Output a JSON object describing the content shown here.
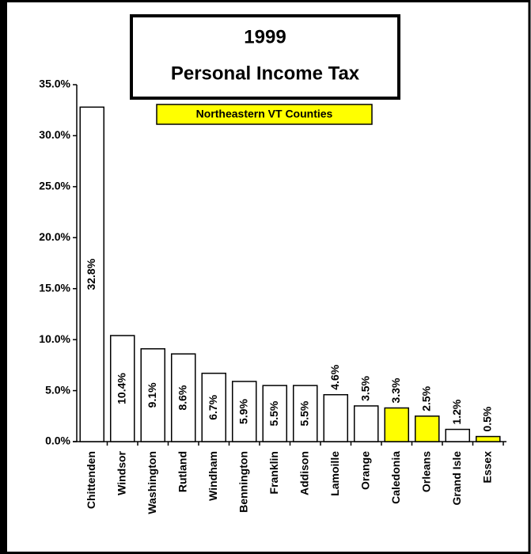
{
  "chart_data": {
    "type": "bar",
    "title": [
      "1999",
      "Personal Income Tax"
    ],
    "subtitle": "Northeastern VT Counties",
    "categories": [
      "Chittenden",
      "Windsor",
      "Washington",
      "Rutland",
      "Windham",
      "Bennington",
      "Franklin",
      "Addison",
      "Lamoille",
      "Orange",
      "Caledonia",
      "Orleans",
      "Grand Isle",
      "Essex"
    ],
    "values": [
      32.8,
      10.4,
      9.1,
      8.6,
      6.7,
      5.9,
      5.5,
      5.5,
      4.6,
      3.5,
      3.3,
      2.5,
      1.2,
      0.5
    ],
    "value_labels": [
      "32.8%",
      "10.4%",
      "9.1%",
      "8.6%",
      "6.7%",
      "5.9%",
      "5.5%",
      "5.5%",
      "4.6%",
      "3.5%",
      "3.3%",
      "2.5%",
      "1.2%",
      "0.5%"
    ],
    "colors": [
      "#ffffff",
      "#ffffff",
      "#ffffff",
      "#ffffff",
      "#ffffff",
      "#ffffff",
      "#ffffff",
      "#ffffff",
      "#ffffff",
      "#ffffff",
      "#ffff00",
      "#ffff00",
      "#ffffff",
      "#ffff00"
    ],
    "ylim": [
      0,
      35
    ],
    "yticks": [
      {
        "value": 0,
        "label": "0.0%"
      },
      {
        "value": 5,
        "label": "5.0%"
      },
      {
        "value": 10,
        "label": "10.0%"
      },
      {
        "value": 15,
        "label": "15.0%"
      },
      {
        "value": 20,
        "label": "20.0%"
      },
      {
        "value": 25,
        "label": "25.0%"
      },
      {
        "value": 30,
        "label": "30.0%"
      },
      {
        "value": 35,
        "label": "35.0%"
      }
    ],
    "grid": false
  }
}
